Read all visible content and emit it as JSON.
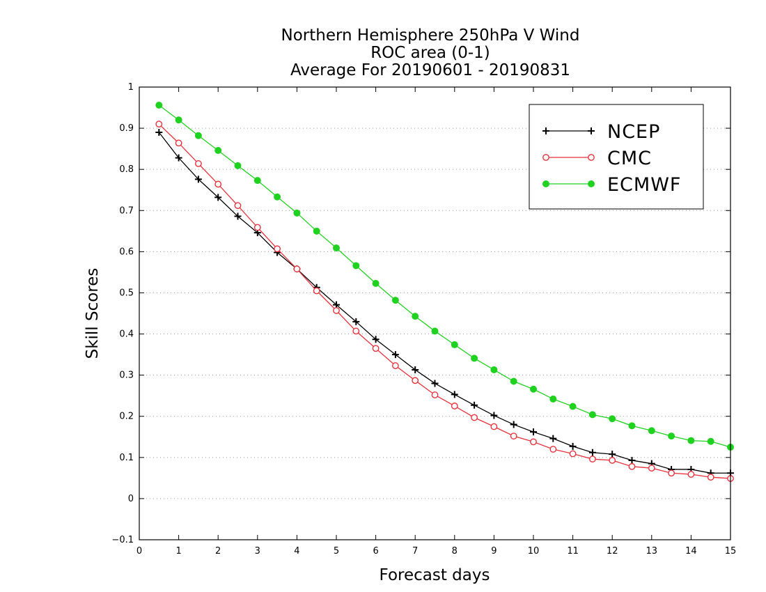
{
  "chart_data": {
    "type": "line",
    "title": [
      "Northern Hemisphere 250hPa V Wind",
      "ROC area (0-1)",
      "Average For 20190601 - 20190831"
    ],
    "xlabel": "Forecast days",
    "ylabel": "Skill Scores",
    "xlim": [
      0,
      15
    ],
    "ylim": [
      -0.1,
      1
    ],
    "xticks": [
      "0",
      "1",
      "2",
      "3",
      "4",
      "5",
      "6",
      "7",
      "8",
      "9",
      "10",
      "11",
      "12",
      "13",
      "14",
      "15"
    ],
    "yticks": [
      "−0.1",
      "0",
      "0.1",
      "0.2",
      "0.3",
      "0.4",
      "0.5",
      "0.6",
      "0.7",
      "0.8",
      "0.9",
      "1"
    ],
    "grid": "horizontal dotted",
    "legend_position": "top-right",
    "x": [
      0.5,
      1,
      1.5,
      2,
      2.5,
      3,
      3.5,
      4,
      4.5,
      5,
      5.5,
      6,
      6.5,
      7,
      7.5,
      8,
      8.5,
      9,
      9.5,
      10,
      10.5,
      11,
      11.5,
      12,
      12.5,
      13,
      13.5,
      14,
      14.5,
      15
    ],
    "series": [
      {
        "name": "NCEP",
        "color": "#000000",
        "marker": "plus",
        "values": [
          0.89,
          0.828,
          0.776,
          0.732,
          0.686,
          0.646,
          0.598,
          0.558,
          0.513,
          0.471,
          0.43,
          0.387,
          0.35,
          0.313,
          0.28,
          0.253,
          0.227,
          0.202,
          0.18,
          0.162,
          0.146,
          0.127,
          0.112,
          0.108,
          0.093,
          0.085,
          0.071,
          0.071,
          0.062,
          0.062
        ]
      },
      {
        "name": "CMC",
        "color": "#e8323c",
        "marker": "open-circle",
        "values": [
          0.91,
          0.864,
          0.814,
          0.764,
          0.712,
          0.659,
          0.607,
          0.558,
          0.505,
          0.457,
          0.407,
          0.365,
          0.323,
          0.287,
          0.252,
          0.225,
          0.197,
          0.175,
          0.152,
          0.138,
          0.12,
          0.109,
          0.096,
          0.093,
          0.078,
          0.074,
          0.062,
          0.059,
          0.052,
          0.049
        ]
      },
      {
        "name": "ECMWF",
        "color": "#1fd21f",
        "marker": "filled-circle",
        "values": [
          0.956,
          0.92,
          0.882,
          0.846,
          0.809,
          0.773,
          0.733,
          0.694,
          0.65,
          0.609,
          0.566,
          0.523,
          0.482,
          0.443,
          0.407,
          0.374,
          0.341,
          0.313,
          0.285,
          0.266,
          0.242,
          0.224,
          0.204,
          0.194,
          0.177,
          0.165,
          0.152,
          0.141,
          0.139,
          0.125
        ]
      }
    ]
  }
}
